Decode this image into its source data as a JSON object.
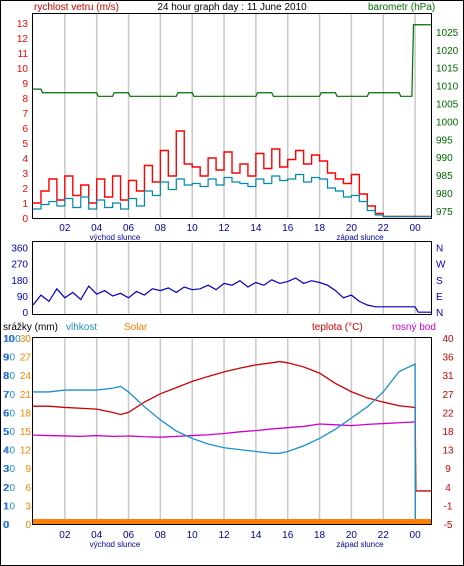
{
  "page": {
    "title": "24 hour graph day : 11 June 2010"
  },
  "labels": {
    "sunrise": "východ slunce",
    "sunset": "západ slunce"
  },
  "x_ticks": [
    "02",
    "04",
    "06",
    "08",
    "10",
    "12",
    "14",
    "16",
    "18",
    "20",
    "22",
    "00"
  ],
  "colors": {
    "wind": "#ff0000",
    "wind_avg": "#008aa8",
    "baro": "#006b00",
    "dir": "#0000c0",
    "temp": "#cc0000",
    "dew": "#cc00cc",
    "humidity": "#1e8fd0",
    "solar": "#ff8000",
    "grid": "#c8c8c8"
  },
  "chart_data": [
    {
      "type": "line",
      "title": "24 hour graph day : 11 June 2010",
      "y_left_label": "rychlost vetru (m/s)",
      "y_right_label": "barometr (hPa)",
      "y_left_ticks": [
        0,
        1,
        2,
        3,
        4,
        5,
        6,
        7,
        8,
        9,
        10,
        11,
        12,
        13
      ],
      "y_left_range": [
        0,
        13.6
      ],
      "y_right_ticks": [
        975,
        980,
        985,
        990,
        995,
        1000,
        1005,
        1010,
        1015,
        1020,
        1025
      ],
      "y_right_range": [
        973,
        1030
      ],
      "x_range_hours": [
        0,
        25
      ],
      "series": [
        {
          "key": "wind_gust",
          "x": [
            0,
            0.5,
            1,
            1.5,
            2,
            2.5,
            3,
            3.5,
            4,
            4.5,
            5,
            5.5,
            6,
            6.5,
            7,
            7.5,
            8,
            8.5,
            9,
            9.5,
            10,
            10.5,
            11,
            11.5,
            12,
            12.5,
            13,
            13.5,
            14,
            14.5,
            15,
            15.5,
            16,
            16.5,
            17,
            17.5,
            18,
            18.5,
            19,
            19.5,
            20,
            20.5,
            21,
            21.5,
            22,
            23,
            24,
            24.2,
            25
          ],
          "y": [
            1.0,
            1.8,
            2.6,
            1.2,
            2.8,
            1.5,
            2.2,
            1.0,
            2.6,
            1.4,
            2.8,
            1.2,
            2.5,
            1.8,
            3.5,
            2.4,
            4.5,
            2.8,
            5.8,
            3.6,
            3.4,
            2.8,
            4.0,
            3.2,
            4.4,
            3.0,
            3.6,
            2.8,
            4.3,
            3.3,
            4.6,
            3.4,
            3.9,
            4.5,
            3.6,
            4.2,
            3.8,
            3.0,
            2.6,
            2.3,
            2.9,
            1.6,
            0.8,
            0.3,
            0.1,
            0.1,
            0.1,
            0.1,
            0.1
          ]
        },
        {
          "key": "wind_avg",
          "x": [
            0,
            0.5,
            1,
            1.5,
            2,
            2.5,
            3,
            3.5,
            4,
            4.5,
            5,
            5.5,
            6,
            6.5,
            7,
            7.5,
            8,
            8.5,
            9,
            9.5,
            10,
            10.5,
            11,
            11.5,
            12,
            12.5,
            13,
            13.5,
            14,
            14.5,
            15,
            15.5,
            16,
            16.5,
            17,
            17.5,
            18,
            18.5,
            19,
            19.5,
            20,
            20.5,
            21,
            21.5,
            22,
            23,
            24,
            24.2,
            25
          ],
          "y": [
            0.6,
            0.9,
            1.1,
            0.8,
            1.3,
            0.7,
            1.4,
            0.6,
            1.2,
            0.7,
            1.0,
            0.6,
            1.3,
            0.8,
            1.8,
            1.5,
            2.4,
            1.9,
            2.6,
            2.2,
            2.3,
            2.1,
            2.6,
            2.2,
            2.7,
            2.4,
            2.3,
            2.1,
            2.6,
            2.3,
            2.8,
            2.5,
            2.6,
            2.9,
            2.4,
            2.7,
            2.6,
            2.0,
            1.8,
            1.4,
            1.5,
            1.1,
            0.5,
            0.2,
            0.1,
            0.1,
            0.1,
            0.1,
            0.1
          ]
        },
        {
          "key": "barometer",
          "axis": "right",
          "x": [
            0,
            0.5,
            0.6,
            4,
            4.1,
            5,
            5.1,
            6,
            6.1,
            9,
            9.1,
            10,
            10.1,
            14,
            14.1,
            15,
            15.1,
            18,
            18.1,
            19,
            19.1,
            21,
            21.1,
            23,
            23.1,
            23.8,
            23.9,
            25
          ],
          "y": [
            1009,
            1009,
            1008,
            1008,
            1007,
            1007,
            1008,
            1008,
            1007,
            1007,
            1008,
            1008,
            1007,
            1007,
            1008,
            1008,
            1007,
            1007,
            1008,
            1008,
            1007,
            1007,
            1008,
            1008,
            1007,
            1007,
            1027,
            1027
          ]
        }
      ]
    },
    {
      "type": "scatter",
      "y_right_label": "N W S E N",
      "y_ticks": [
        0,
        90,
        180,
        270,
        360
      ],
      "y_range": [
        -10,
        390
      ],
      "x_range_hours": [
        0,
        25
      ],
      "series": [
        {
          "key": "wind_direction",
          "x": [
            0,
            0.5,
            1,
            1.5,
            2,
            2.5,
            3,
            3.5,
            4,
            4.5,
            5,
            5.5,
            6,
            6.5,
            7,
            7.5,
            8,
            8.5,
            9,
            9.5,
            10,
            10.5,
            11,
            11.5,
            12,
            12.5,
            13,
            13.5,
            14,
            14.5,
            15,
            15.5,
            16,
            16.5,
            17,
            17.5,
            18,
            18.5,
            19,
            19.5,
            20,
            20.5,
            21,
            21.5,
            22,
            23,
            24,
            24.2,
            25
          ],
          "y": [
            40,
            95,
            60,
            130,
            80,
            110,
            70,
            145,
            100,
            120,
            90,
            105,
            80,
            115,
            95,
            130,
            120,
            135,
            110,
            140,
            125,
            130,
            150,
            125,
            160,
            150,
            175,
            140,
            165,
            150,
            180,
            160,
            170,
            190,
            160,
            175,
            165,
            150,
            120,
            80,
            95,
            60,
            40,
            30,
            30,
            30,
            30,
            0,
            0
          ]
        }
      ]
    },
    {
      "type": "line",
      "y_left_label": "srážky (mm)",
      "y_left2_label": "vlhkost",
      "y_left3_label": "Solar",
      "y_right_label": "teplota (°C)",
      "y_right2_label": "rosný bod",
      "y_left_ticks": [
        0,
        1,
        2,
        3,
        4,
        5,
        6,
        7,
        8,
        9,
        10
      ],
      "y_humidity_ticks": [
        0,
        10,
        20,
        30,
        40,
        50,
        60,
        70,
        80,
        90,
        100
      ],
      "y_solar_ticks": [
        0,
        3,
        6,
        9,
        12,
        15,
        18,
        21,
        24,
        27,
        30
      ],
      "y_right_ticks": [
        -5,
        -1,
        4,
        9,
        13,
        18,
        22,
        27,
        31,
        36,
        40
      ],
      "y_right_range": [
        -5,
        40
      ],
      "x_range_hours": [
        0,
        25
      ],
      "series": [
        {
          "key": "temperature",
          "axis": "right",
          "x": [
            0,
            1,
            2,
            3,
            4,
            5,
            5.5,
            6,
            7,
            8,
            9,
            10,
            11,
            12,
            13,
            14,
            15,
            15.5,
            16,
            17,
            18,
            19,
            20,
            21,
            22,
            23,
            24,
            24.05,
            25
          ],
          "y": [
            23.5,
            23.5,
            23.2,
            23.0,
            22.8,
            22.0,
            21.5,
            22.0,
            24.5,
            26.5,
            28.0,
            29.5,
            30.7,
            31.8,
            32.7,
            33.5,
            34.0,
            34.3,
            34.0,
            33.0,
            31.5,
            29.0,
            27.0,
            25.5,
            24.5,
            23.6,
            23.2,
            3.0,
            3.0
          ]
        },
        {
          "key": "dew_point",
          "axis": "right",
          "x": [
            0,
            1,
            2,
            3,
            4,
            5,
            6,
            7,
            8,
            9,
            10,
            11,
            12,
            13,
            14,
            15,
            16,
            17,
            18,
            19,
            20,
            21,
            22,
            23,
            24
          ],
          "y": [
            16.5,
            16.4,
            16.3,
            16.2,
            16.4,
            16.2,
            16.3,
            16.1,
            16.0,
            16.2,
            16.4,
            16.6,
            16.9,
            17.3,
            17.6,
            18.0,
            18.3,
            18.6,
            19.2,
            19.0,
            18.8,
            19.1,
            19.3,
            19.5,
            19.7
          ]
        },
        {
          "key": "humidity",
          "axis": "humidity",
          "x": [
            0,
            1,
            2,
            3,
            4,
            5,
            5.5,
            6,
            7,
            8,
            9,
            10,
            11,
            12,
            13,
            14,
            15,
            15.5,
            16,
            17,
            18,
            19,
            20,
            21,
            22,
            23,
            24,
            24.02,
            25
          ],
          "y": [
            71,
            71,
            72,
            72,
            72,
            73,
            74,
            71,
            63,
            56,
            50,
            46,
            43,
            41,
            40,
            39,
            38,
            38,
            39,
            42,
            46,
            51,
            57,
            63,
            71,
            82,
            86,
            0,
            0
          ]
        }
      ]
    }
  ]
}
